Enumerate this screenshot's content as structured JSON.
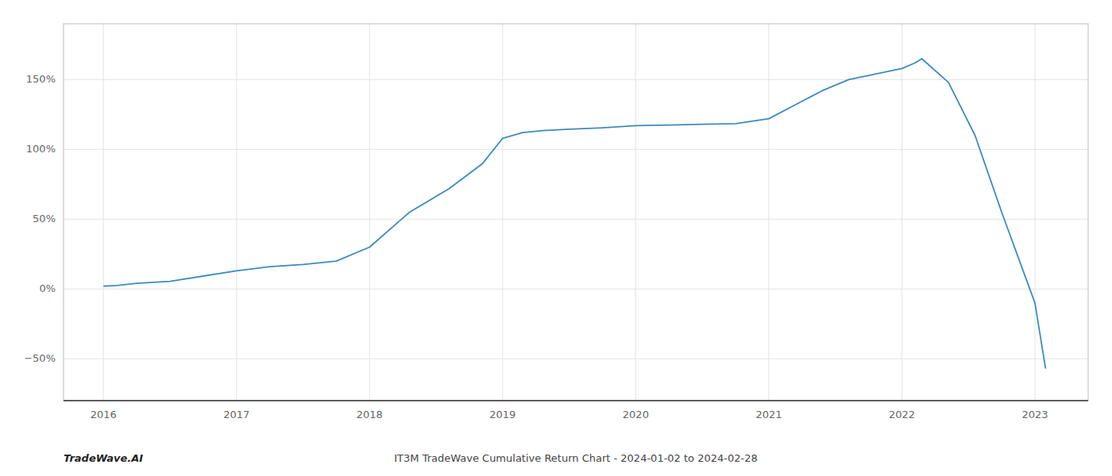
{
  "chart_data": {
    "type": "line",
    "title": "IT3M TradeWave Cumulative Return Chart - 2024-01-02 to 2024-02-28",
    "annotations": [
      "TradeWave.AI"
    ],
    "x": [
      2016.0,
      2016.1,
      2016.25,
      2016.5,
      2017.0,
      2017.25,
      2017.5,
      2017.75,
      2018.0,
      2018.3,
      2018.6,
      2018.85,
      2019.0,
      2019.15,
      2019.3,
      2019.5,
      2019.75,
      2020.0,
      2020.25,
      2020.5,
      2020.75,
      2021.0,
      2021.2,
      2021.4,
      2021.6,
      2021.75,
      2022.0,
      2022.1,
      2022.15,
      2022.35,
      2022.55,
      2022.75,
      2023.0,
      2023.08
    ],
    "values": [
      2.0,
      2.5,
      4.0,
      5.5,
      13.0,
      16.0,
      17.5,
      20.0,
      30.0,
      55.0,
      72.0,
      90.0,
      108.0,
      112.0,
      113.5,
      114.5,
      115.5,
      117.0,
      117.5,
      118.0,
      118.5,
      122.0,
      132.0,
      142.0,
      150.0,
      153.0,
      158.0,
      162.0,
      165.0,
      148.0,
      110.0,
      55.0,
      -10.0,
      -57.0
    ],
    "color": "#3d8bbf",
    "xlim": [
      2015.7,
      2023.4
    ],
    "ylim": [
      -80,
      190
    ],
    "xticks": [
      2016,
      2017,
      2018,
      2019,
      2020,
      2021,
      2022,
      2023
    ],
    "yticks": [
      {
        "value": -50,
        "label": "−50%"
      },
      {
        "value": 0,
        "label": "0%"
      },
      {
        "value": 50,
        "label": "50%"
      },
      {
        "value": 100,
        "label": "100%"
      },
      {
        "value": 150,
        "label": "150%"
      }
    ],
    "grid": true
  }
}
